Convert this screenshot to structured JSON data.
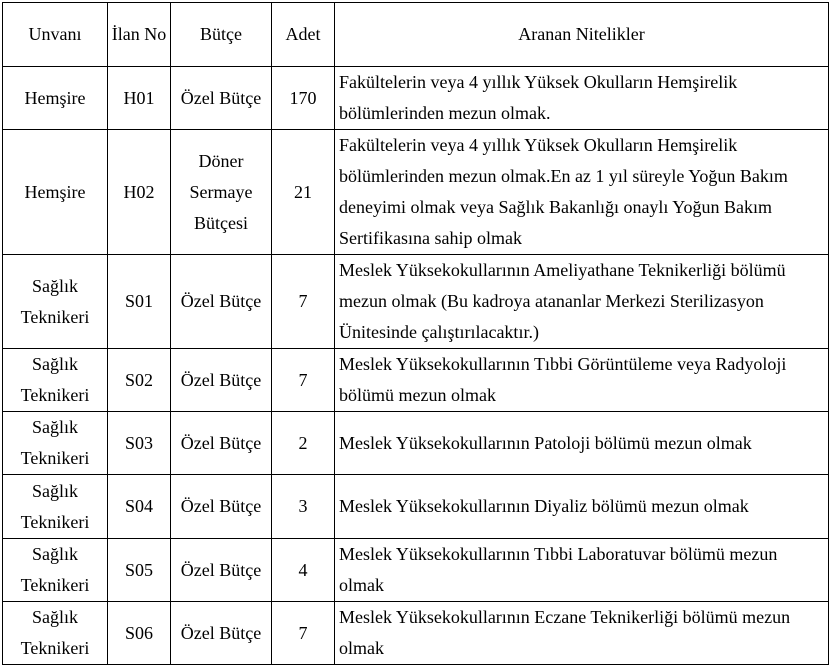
{
  "table": {
    "header": [
      "Unvanı",
      "İlan No",
      "Bütçe",
      "Adet",
      "Aranan Nitelikler"
    ],
    "rows": [
      [
        "Hemşire",
        "H01",
        "Özel Bütçe",
        "170",
        "Fakültelerin veya 4 yıllık Yüksek Okulların Hemşirelik bölümlerinden mezun olmak."
      ],
      [
        "Hemşire",
        "H02",
        "Döner Sermaye Bütçesi",
        "21",
        "Fakültelerin veya 4 yıllık Yüksek Okulların Hemşirelik bölümlerinden mezun olmak.En az 1 yıl süreyle Yoğun Bakım deneyimi olmak veya Sağlık Bakanlığı onaylı Yoğun Bakım Sertifikasına sahip olmak"
      ],
      [
        "Sağlık Teknikeri",
        "S01",
        "Özel Bütçe",
        "7",
        "Meslek Yüksekokullarının Ameliyathane Teknikerliği bölümü mezun olmak (Bu kadroya atananlar Merkezi Sterilizasyon Ünitesinde çalıştırılacaktır.)"
      ],
      [
        "Sağlık Teknikeri",
        "S02",
        "Özel Bütçe",
        "7",
        "Meslek Yüksekokullarının Tıbbi Görüntüleme veya Radyoloji bölümü mezun olmak"
      ],
      [
        "Sağlık Teknikeri",
        "S03",
        "Özel Bütçe",
        "2",
        "Meslek Yüksekokullarının Patoloji bölümü mezun olmak"
      ],
      [
        "Sağlık Teknikeri",
        "S04",
        "Özel Bütçe",
        "3",
        "Meslek Yüksekokullarının Diyaliz bölümü mezun olmak"
      ],
      [
        "Sağlık Teknikeri",
        "S05",
        "Özel Bütçe",
        "4",
        "Meslek Yüksekokullarının Tıbbi Laboratuvar bölümü mezun olmak"
      ],
      [
        "Sağlık Teknikeri",
        "S06",
        "Özel Bütçe",
        "7",
        "Meslek Yüksekokullarının Eczane Teknikerliği bölümü mezun olmak"
      ]
    ]
  }
}
